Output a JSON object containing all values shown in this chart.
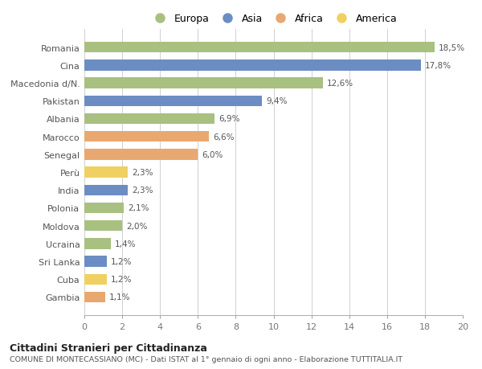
{
  "countries": [
    "Romania",
    "Cina",
    "Macedonia d/N.",
    "Pakistan",
    "Albania",
    "Marocco",
    "Senegal",
    "Perù",
    "India",
    "Polonia",
    "Moldova",
    "Ucraina",
    "Sri Lanka",
    "Cuba",
    "Gambia"
  ],
  "values": [
    18.5,
    17.8,
    12.6,
    9.4,
    6.9,
    6.6,
    6.0,
    2.3,
    2.3,
    2.1,
    2.0,
    1.4,
    1.2,
    1.2,
    1.1
  ],
  "labels": [
    "18,5%",
    "17,8%",
    "12,6%",
    "9,4%",
    "6,9%",
    "6,6%",
    "6,0%",
    "2,3%",
    "2,3%",
    "2,1%",
    "2,0%",
    "1,4%",
    "1,2%",
    "1,2%",
    "1,1%"
  ],
  "continents": [
    "Europa",
    "Asia",
    "Europa",
    "Asia",
    "Europa",
    "Africa",
    "Africa",
    "America",
    "Asia",
    "Europa",
    "Europa",
    "Europa",
    "Asia",
    "America",
    "Africa"
  ],
  "colors": {
    "Europa": "#a8c080",
    "Asia": "#6b8dc4",
    "Africa": "#e8a870",
    "America": "#f0d060"
  },
  "xlim": [
    0,
    20
  ],
  "xticks": [
    0,
    2,
    4,
    6,
    8,
    10,
    12,
    14,
    16,
    18,
    20
  ],
  "title": "Cittadini Stranieri per Cittadinanza",
  "subtitle": "COMUNE DI MONTECASSIANO (MC) - Dati ISTAT al 1° gennaio di ogni anno - Elaborazione TUTTITALIA.IT",
  "bg_color": "#ffffff",
  "grid_color": "#d0d0d0",
  "bar_height": 0.6
}
